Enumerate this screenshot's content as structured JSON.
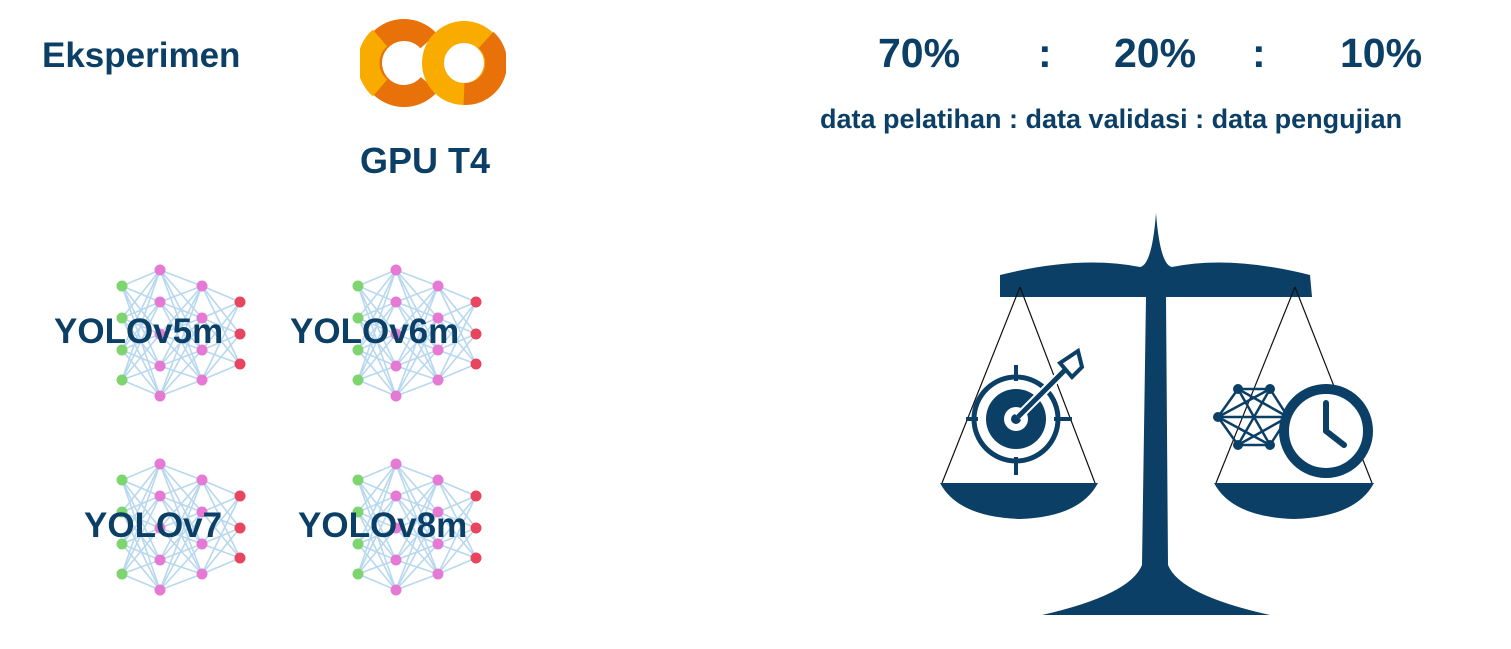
{
  "header": {
    "title": "Eksperimen",
    "gpu_label": "GPU T4"
  },
  "split": {
    "train": "70%",
    "sep1": ":",
    "val": "20%",
    "sep2": ":",
    "test": "10%",
    "legend": "data pelatihan : data validasi : data pengujian"
  },
  "models": [
    "YOLOv5m",
    "YOLOv6m",
    "YOLOv7",
    "YOLOv8m"
  ],
  "colors": {
    "primary": "#0b3f66",
    "colab_orange_dark": "#e8710a",
    "colab_orange_light": "#f9ab00",
    "node_green": "#7ed56f",
    "node_pink": "#e57ad4",
    "node_red": "#e8455f",
    "edge_blue": "#b8d8ef"
  },
  "icons": {
    "logo": "colab-logo-icon",
    "network": "neural-network-icon",
    "scale": "balance-scale-icon",
    "target": "target-arrow-icon",
    "mesh": "mesh-network-icon",
    "clock": "clock-icon"
  }
}
